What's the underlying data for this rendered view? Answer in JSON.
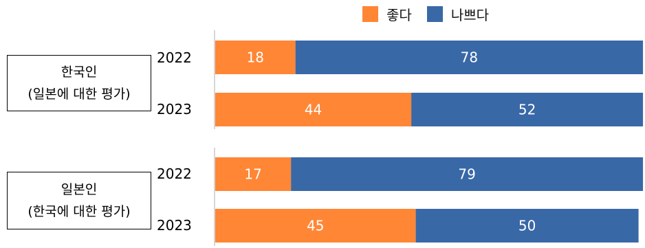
{
  "legend": [
    {
      "label": "좋다",
      "color": "#ff8635"
    },
    {
      "label": "나쁘다",
      "color": "#3968a7"
    }
  ],
  "groups": [
    {
      "line1": "한국인",
      "line2": "(일본에 대한 평가)"
    },
    {
      "line1": "일본인",
      "line2": "(한국에 대한 평가)"
    }
  ],
  "chart_data": {
    "type": "bar",
    "orientation": "horizontal",
    "stacked": true,
    "groups": [
      "한국인 (일본에 대한 평가)",
      "일본인 (한국에 대한 평가)"
    ],
    "categories": [
      "2022",
      "2023",
      "2022",
      "2023"
    ],
    "series": [
      {
        "name": "좋다",
        "color": "#ff8635",
        "values": [
          18,
          44,
          17,
          45
        ]
      },
      {
        "name": "나쁘다",
        "color": "#3968a7",
        "values": [
          78,
          52,
          79,
          50
        ]
      }
    ],
    "xlim": [
      0,
      100
    ],
    "grid": false,
    "legend_position": "top-right"
  }
}
